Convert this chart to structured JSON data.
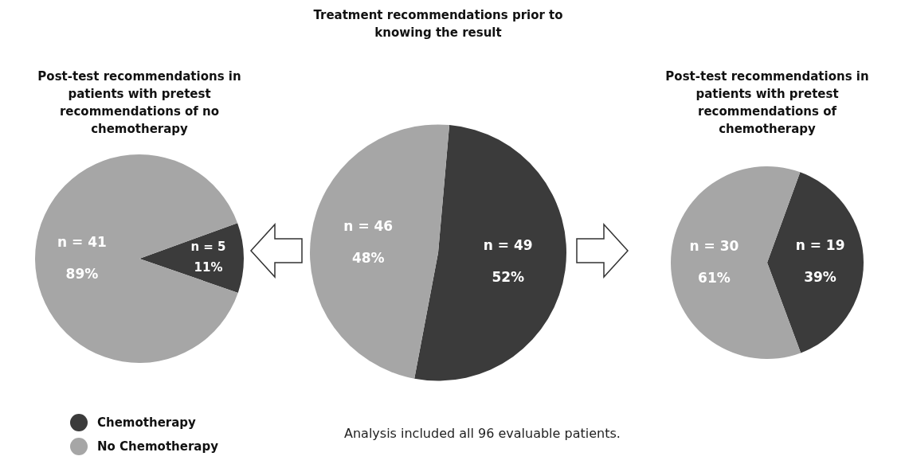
{
  "chart_data": [
    {
      "type": "pie",
      "title": "Post-test recommendations in patients with pretest recommendations of no chemotherapy",
      "categories": [
        "Chemotherapy",
        "No Chemotherapy"
      ],
      "values": [
        5,
        41
      ],
      "colors": [
        "#3b3b3b",
        "#a6a6a6"
      ],
      "value_labels": [
        "n = 5\n11%",
        "n = 41\n89%"
      ],
      "legend": "bottom left"
    },
    {
      "type": "pie",
      "title": "Treatment recommendations prior to knowing the result",
      "categories": [
        null,
        null
      ],
      "values": [
        49,
        46
      ],
      "colors": [
        "#3b3b3b",
        "#a6a6a6"
      ],
      "value_labels": [
        "n = 49\n52%",
        "n = 46\n48%"
      ],
      "annotations": [
        "Analysis included all 96 evaluable patients."
      ]
    },
    {
      "type": "pie",
      "title": "Post-test recommendations in patients with pretest recommendations of chemotherapy",
      "categories": [
        null,
        null
      ],
      "values": [
        19,
        30
      ],
      "colors": [
        "#3b3b3b",
        "#a6a6a6"
      ],
      "value_labels": [
        "n = 19\n39%",
        "n = 30\n61%"
      ]
    }
  ]
}
